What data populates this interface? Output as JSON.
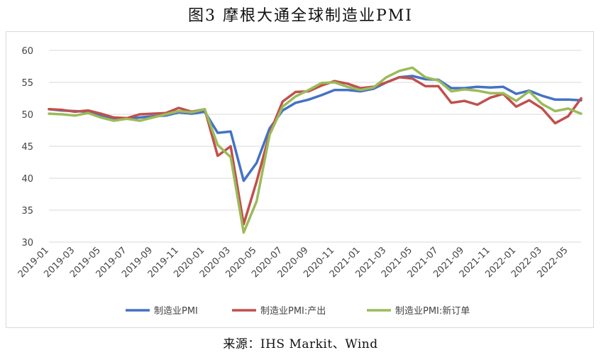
{
  "title": "图3 摩根大通全球制造业PMI",
  "source": "来源：IHS Markit、Wind",
  "chart_data": {
    "type": "line",
    "x": [
      "2019-01",
      "2019-02",
      "2019-03",
      "2019-04",
      "2019-05",
      "2019-06",
      "2019-07",
      "2019-08",
      "2019-09",
      "2019-10",
      "2019-11",
      "2019-12",
      "2020-01",
      "2020-02",
      "2020-03",
      "2020-04",
      "2020-05",
      "2020-06",
      "2020-07",
      "2020-08",
      "2020-09",
      "2020-10",
      "2020-11",
      "2020-12",
      "2021-01",
      "2021-02",
      "2021-03",
      "2021-04",
      "2021-05",
      "2021-06",
      "2021-07",
      "2021-08",
      "2021-09",
      "2021-10",
      "2021-11",
      "2021-12",
      "2022-01",
      "2022-02",
      "2022-03",
      "2022-04",
      "2022-05",
      "2022-06"
    ],
    "x_tick_labels": [
      "2019-01",
      "2019-03",
      "2019-05",
      "2019-07",
      "2019-09",
      "2019-11",
      "2020-01",
      "2020-03",
      "2020-05",
      "2020-07",
      "2020-09",
      "2020-11",
      "2021-01",
      "2021-03",
      "2021-05",
      "2021-07",
      "2021-09",
      "2021-11",
      "2022-01",
      "2022-03",
      "2022-05"
    ],
    "ylim": [
      30,
      60
    ],
    "yticks": [
      30,
      35,
      40,
      45,
      50,
      55,
      60
    ],
    "grid": "horizontal",
    "legend_position": "bottom",
    "series": [
      {
        "name": "制造业PMI",
        "color": "#4472C4",
        "values": [
          50.8,
          50.6,
          50.5,
          50.4,
          49.8,
          49.4,
          49.3,
          49.5,
          49.7,
          49.8,
          50.3,
          50.1,
          50.4,
          47.1,
          47.3,
          39.6,
          42.4,
          47.8,
          50.6,
          51.8,
          52.3,
          53.0,
          53.8,
          53.8,
          53.6,
          54.0,
          55.0,
          55.8,
          56.0,
          55.5,
          55.4,
          54.1,
          54.1,
          54.3,
          54.2,
          54.3,
          53.2,
          53.7,
          52.9,
          52.3,
          52.3,
          52.2
        ]
      },
      {
        "name": "制造业PMI:产出",
        "color": "#C0504D",
        "values": [
          50.8,
          50.7,
          50.4,
          50.6,
          50.1,
          49.5,
          49.4,
          50.0,
          50.1,
          50.2,
          51.0,
          50.4,
          50.8,
          43.5,
          45.0,
          32.8,
          39.5,
          47.0,
          52.0,
          53.5,
          53.6,
          54.5,
          55.2,
          54.8,
          54.1,
          54.3,
          55.0,
          55.8,
          55.6,
          54.4,
          54.4,
          51.8,
          52.1,
          51.5,
          52.6,
          53.2,
          51.2,
          52.2,
          50.9,
          48.6,
          49.7,
          52.5
        ]
      },
      {
        "name": "制造业PMI:新订单",
        "color": "#9BBB59",
        "values": [
          50.1,
          50.0,
          49.8,
          50.2,
          49.5,
          49.0,
          49.3,
          49.0,
          49.5,
          50.0,
          50.5,
          50.3,
          50.8,
          45.2,
          43.3,
          31.5,
          36.4,
          46.8,
          51.2,
          52.8,
          53.8,
          54.9,
          55.0,
          54.3,
          53.8,
          54.2,
          55.8,
          56.8,
          57.3,
          55.8,
          55.3,
          53.6,
          53.9,
          53.7,
          53.3,
          53.3,
          52.1,
          53.6,
          51.6,
          50.5,
          50.9,
          50.1
        ]
      }
    ]
  }
}
